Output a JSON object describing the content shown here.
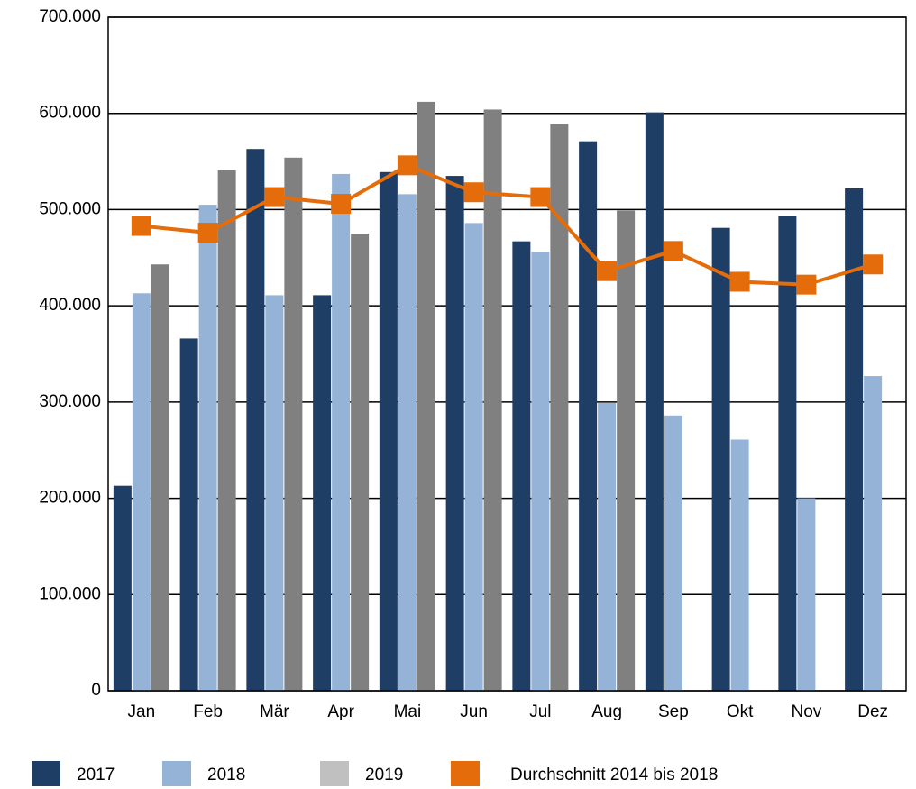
{
  "chart_data": {
    "type": "bar",
    "categories": [
      "Jan",
      "Feb",
      "Mär",
      "Apr",
      "Mai",
      "Jun",
      "Jul",
      "Aug",
      "Sep",
      "Okt",
      "Nov",
      "Dez"
    ],
    "series": [
      {
        "name": "2017",
        "color": "#1f3e66",
        "values": [
          213000,
          366000,
          563000,
          411000,
          539000,
          535000,
          467000,
          571000,
          601000,
          481000,
          493000,
          522000
        ]
      },
      {
        "name": "2018",
        "color": "#95b3d7",
        "values": [
          413000,
          505000,
          411000,
          537000,
          516000,
          486000,
          456000,
          299000,
          286000,
          261000,
          200000,
          327000
        ]
      },
      {
        "name": "2019",
        "color": "#808080",
        "values": [
          443000,
          541000,
          554000,
          475000,
          612000,
          604000,
          589000,
          499000,
          null,
          null,
          null,
          null
        ]
      },
      {
        "name": "Durchschnitt 2014 bis 2018",
        "color": "#e46c0a",
        "type": "line",
        "values": [
          483000,
          476000,
          513000,
          506000,
          546000,
          518000,
          513000,
          436000,
          457000,
          425000,
          422000,
          443000
        ]
      }
    ],
    "ylim": [
      0,
      700000
    ],
    "yticks": [
      0,
      {
        "value": 100000,
        "label": "100.000"
      },
      {
        "value": 200000,
        "label": "200.000"
      },
      {
        "value": 300000,
        "label": "300.000"
      },
      {
        "value": 400000,
        "label": "400.000"
      },
      {
        "value": 500000,
        "label": "500.000"
      },
      {
        "value": 600000,
        "label": "600.000"
      },
      {
        "value": 700000,
        "label": "700.000"
      }
    ],
    "grid": true,
    "legend": "bottom"
  }
}
